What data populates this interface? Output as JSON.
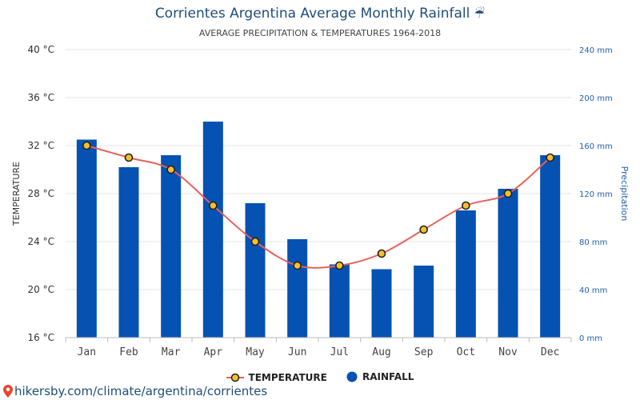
{
  "chart_data": {
    "type": "bar+line",
    "title": "Corrientes Argentina Average Monthly Rainfall",
    "title_icon": "umbrella-rain-icon",
    "subtitle": "AVERAGE PRECIPITATION & TEMPERATURES 1964-2018",
    "categories": [
      "Jan",
      "Feb",
      "Mar",
      "Apr",
      "May",
      "Jun",
      "Jul",
      "Aug",
      "Sep",
      "Oct",
      "Nov",
      "Dec"
    ],
    "left_axis": {
      "label": "TEMPERATURE",
      "range": [
        16,
        40
      ],
      "ticks": [
        "16 °C",
        "20 °C",
        "24 °C",
        "28 °C",
        "32 °C",
        "36 °C",
        "40 °C"
      ]
    },
    "right_axis": {
      "label": "Precipitation",
      "range": [
        0,
        240
      ],
      "ticks": [
        "0 mm",
        "40 mm",
        "80 mm",
        "120 mm",
        "160 mm",
        "200 mm",
        "240 mm"
      ]
    },
    "series": [
      {
        "name": "TEMPERATURE",
        "type": "line",
        "axis": "left",
        "color": "#e8605a",
        "marker_fill": "#f5c02e",
        "values": [
          32,
          31,
          30,
          27,
          24,
          22,
          22,
          23,
          25,
          27,
          28,
          31
        ]
      },
      {
        "name": "RAINFALL",
        "type": "bar",
        "axis": "right",
        "color": "#0552b3",
        "values": [
          165,
          142,
          152,
          180,
          112,
          82,
          61,
          57,
          60,
          106,
          124,
          152
        ]
      }
    ],
    "grid": true,
    "legend_position": "bottom-center"
  },
  "legend": {
    "temperature_label": "TEMPERATURE",
    "rainfall_label": "RAINFALL"
  },
  "source": {
    "text": "hikersby.com/climate/argentina/corrientes",
    "icon": "map-pin-icon"
  }
}
